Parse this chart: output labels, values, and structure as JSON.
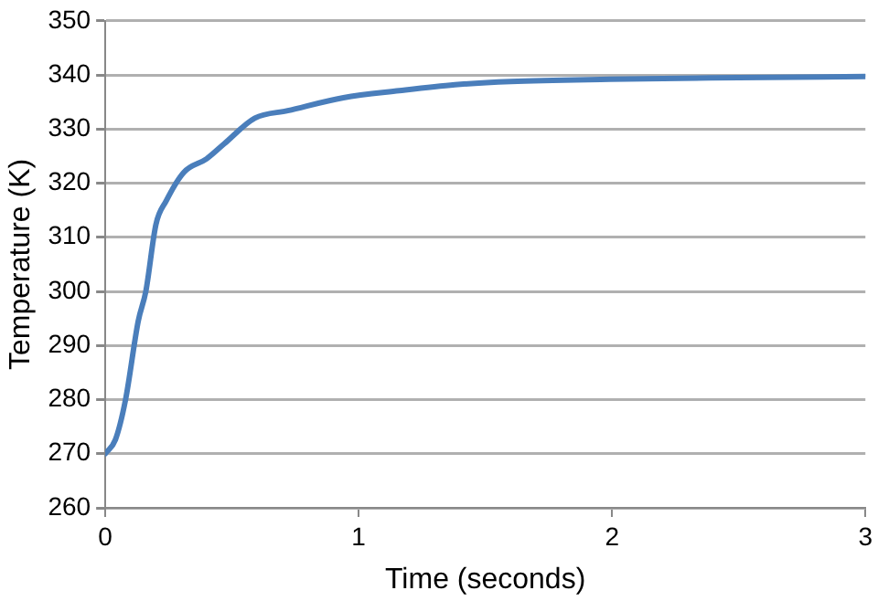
{
  "chart_data": {
    "type": "line",
    "xlabel": "Time (seconds)",
    "ylabel": "Temperature (K)",
    "xlim": [
      0,
      3
    ],
    "xticks": [
      0,
      1,
      2,
      3
    ],
    "ylim": [
      260,
      350
    ],
    "yticks": [
      260,
      270,
      280,
      290,
      300,
      310,
      320,
      330,
      340,
      350
    ],
    "grid": "y",
    "legend": false,
    "marker": "none",
    "line_style": "solid",
    "series": [
      {
        "color": "#4a7ebb",
        "x": [
          0,
          0.04,
          0.08,
          0.13,
          0.16,
          0.2,
          0.24,
          0.31,
          0.4,
          0.47,
          0.59,
          0.72,
          0.94,
          1.16,
          1.38,
          1.6,
          1.99,
          2.5,
          3
        ],
        "values": [
          270,
          272.6,
          280,
          294.5,
          300,
          312.4,
          316.7,
          322,
          324.5,
          327.3,
          332,
          333.4,
          335.8,
          337.1,
          338.2,
          338.8,
          339.2,
          339.5,
          339.7
        ]
      }
    ]
  }
}
